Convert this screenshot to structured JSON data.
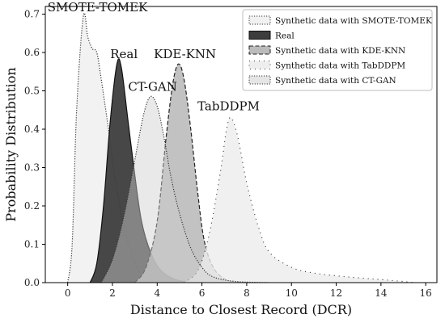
{
  "chart_data": {
    "type": "area",
    "xlabel": "Distance to Closest Record (DCR)",
    "ylabel": "Probability Distribution",
    "xlim": [
      -1,
      16.5
    ],
    "ylim": [
      0,
      0.72
    ],
    "xticks": [
      0,
      2,
      4,
      6,
      8,
      10,
      12,
      14,
      16
    ],
    "yticks": [
      0.0,
      0.1,
      0.2,
      0.3,
      0.4,
      0.5,
      0.6,
      0.7
    ],
    "ytick_labels": [
      "0.0",
      "0.1",
      "0.2",
      "0.3",
      "0.4",
      "0.5",
      "0.6",
      "0.7"
    ],
    "grid": false,
    "legend_position": "top-right",
    "series": [
      {
        "name": "Synthetic data with SMOTE-TOMEK",
        "annotation": "SMOTE-TOMEK",
        "fill": "#eeeeee",
        "fill_opacity": 0.75,
        "stroke": "#333333",
        "dash": "1.2,1.8",
        "points": [
          [
            0,
            0
          ],
          [
            0.2,
            0.1
          ],
          [
            0.4,
            0.45
          ],
          [
            0.7,
            0.695
          ],
          [
            0.9,
            0.64
          ],
          [
            1.1,
            0.61
          ],
          [
            1.3,
            0.6
          ],
          [
            1.5,
            0.53
          ],
          [
            1.8,
            0.41
          ],
          [
            2.1,
            0.28
          ],
          [
            2.5,
            0.15
          ],
          [
            3,
            0.05
          ],
          [
            3.5,
            0.01
          ],
          [
            4,
            0
          ]
        ]
      },
      {
        "name": "Real",
        "annotation": "Real",
        "fill": "#3d3d3d",
        "fill_opacity": 0.95,
        "stroke": "#111111",
        "dash": "",
        "points": [
          [
            1,
            0
          ],
          [
            1.3,
            0.05
          ],
          [
            1.6,
            0.2
          ],
          [
            1.9,
            0.42
          ],
          [
            2.2,
            0.57
          ],
          [
            2.4,
            0.56
          ],
          [
            2.7,
            0.42
          ],
          [
            3,
            0.28
          ],
          [
            3.3,
            0.16
          ],
          [
            3.7,
            0.08
          ],
          [
            4.2,
            0.03
          ],
          [
            5,
            0.005
          ],
          [
            6,
            0
          ]
        ]
      },
      {
        "name": "Synthetic data with KDE-KNN",
        "annotation": "KDE-KNN",
        "fill": "#b7b7b7",
        "fill_opacity": 0.85,
        "stroke": "#222222",
        "dash": "5,2.5",
        "points": [
          [
            3,
            0
          ],
          [
            3.5,
            0.04
          ],
          [
            4,
            0.16
          ],
          [
            4.4,
            0.38
          ],
          [
            4.7,
            0.52
          ],
          [
            4.95,
            0.57
          ],
          [
            5.2,
            0.53
          ],
          [
            5.5,
            0.4
          ],
          [
            5.8,
            0.24
          ],
          [
            6.1,
            0.11
          ],
          [
            6.5,
            0.04
          ],
          [
            7,
            0.01
          ],
          [
            7.5,
            0
          ]
        ]
      },
      {
        "name": "Synthetic data with TabDDPM",
        "annotation": "TabDDPM",
        "fill": "#ececec",
        "fill_opacity": 0.8,
        "stroke": "#333333",
        "dash": "1,5",
        "points": [
          [
            5.2,
            0
          ],
          [
            5.8,
            0.03
          ],
          [
            6.3,
            0.12
          ],
          [
            6.8,
            0.28
          ],
          [
            7.1,
            0.4
          ],
          [
            7.3,
            0.43
          ],
          [
            7.6,
            0.38
          ],
          [
            8,
            0.26
          ],
          [
            8.5,
            0.15
          ],
          [
            9,
            0.08
          ],
          [
            10,
            0.04
          ],
          [
            11,
            0.025
          ],
          [
            12.5,
            0.015
          ],
          [
            14,
            0.008
          ],
          [
            15,
            0.003
          ],
          [
            15.5,
            0
          ]
        ]
      },
      {
        "name": "Synthetic data with CT-GAN",
        "annotation": "CT-GAN",
        "fill": "#cfcfcf",
        "fill_opacity": 0.45,
        "stroke": "#333333",
        "dash": "1.2,1.8",
        "points": [
          [
            1.5,
            0
          ],
          [
            2,
            0.06
          ],
          [
            2.5,
            0.17
          ],
          [
            3,
            0.32
          ],
          [
            3.4,
            0.44
          ],
          [
            3.7,
            0.485
          ],
          [
            4,
            0.46
          ],
          [
            4.3,
            0.38
          ],
          [
            4.6,
            0.28
          ],
          [
            5,
            0.18
          ],
          [
            5.5,
            0.09
          ],
          [
            6,
            0.04
          ],
          [
            6.5,
            0.015
          ],
          [
            7.5,
            0.003
          ],
          [
            9,
            0
          ]
        ]
      }
    ],
    "legend_order": [
      0,
      1,
      2,
      3,
      4
    ]
  }
}
